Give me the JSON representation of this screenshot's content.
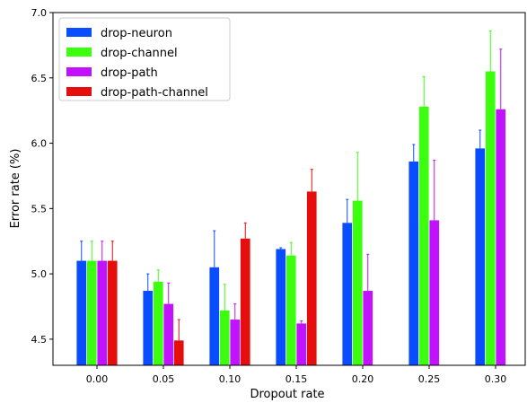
{
  "chart_data": {
    "type": "bar",
    "xlabel": "Dropout rate",
    "ylabel": "Error rate (%)",
    "ylim": [
      4.3,
      7.0
    ],
    "yticks": [
      "4.5",
      "5.0",
      "5.5",
      "6.0",
      "6.5",
      "7.0"
    ],
    "categories": [
      "0.00",
      "0.05",
      "0.10",
      "0.15",
      "0.20",
      "0.25",
      "0.30"
    ],
    "legend_position": "top-left",
    "grid": false,
    "series": [
      {
        "name": "drop-neuron",
        "color": "#0a4cff",
        "values": [
          5.1,
          4.87,
          5.05,
          5.19,
          5.39,
          5.86,
          5.96
        ],
        "errors": [
          0.15,
          0.13,
          0.28,
          0.01,
          0.18,
          0.13,
          0.14
        ]
      },
      {
        "name": "drop-channel",
        "color": "#3bff0f",
        "values": [
          5.1,
          4.94,
          4.72,
          5.14,
          5.56,
          6.28,
          6.55
        ],
        "errors": [
          0.15,
          0.09,
          0.2,
          0.1,
          0.37,
          0.23,
          0.31
        ]
      },
      {
        "name": "drop-path",
        "color": "#c212ff",
        "values": [
          5.1,
          4.77,
          4.65,
          4.62,
          4.87,
          5.41,
          6.26
        ],
        "errors": [
          0.15,
          0.16,
          0.12,
          0.02,
          0.28,
          0.46,
          0.46
        ]
      },
      {
        "name": "drop-path-channel",
        "color": "#e60d0d",
        "values": [
          5.1,
          4.49,
          5.27,
          5.63,
          null,
          null,
          null
        ],
        "errors": [
          0.15,
          0.16,
          0.12,
          0.17,
          null,
          null,
          null
        ]
      }
    ]
  }
}
